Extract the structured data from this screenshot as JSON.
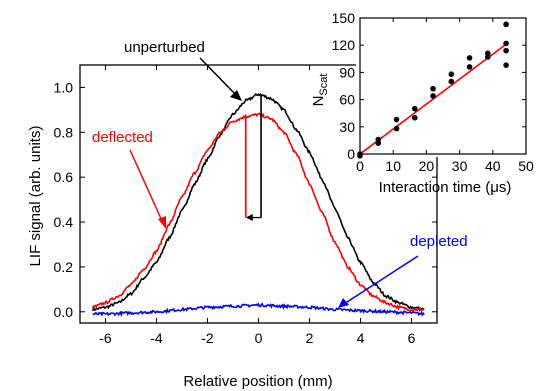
{
  "chart_data": [
    {
      "type": "line",
      "xlabel": "Relative position (mm)",
      "ylabel": "LIF signal (arb. units)",
      "xlim": [
        -7,
        7
      ],
      "ylim": [
        -0.05,
        1.1
      ],
      "xticks": [
        -6,
        -4,
        -2,
        0,
        2,
        4,
        6
      ],
      "xtick_labels": [
        "-6",
        "-4",
        "-2",
        "0",
        "2",
        "4",
        "6"
      ],
      "yticks": [
        0.0,
        0.2,
        0.4,
        0.6,
        0.8,
        1.0
      ],
      "ytick_labels": [
        "0.0",
        "0.2",
        "0.4",
        "0.6",
        "0.8",
        "1.0"
      ],
      "series": [
        {
          "name": "unperturbed",
          "color": "#000000",
          "x": [
            -6.5,
            -6,
            -5.5,
            -5,
            -4.5,
            -4,
            -3.5,
            -3,
            -2.5,
            -2,
            -1.5,
            -1,
            -0.5,
            0,
            0.5,
            1,
            1.5,
            2,
            2.5,
            3,
            3.5,
            4,
            4.5,
            5,
            5.5,
            6,
            6.5
          ],
          "y": [
            0.01,
            0.02,
            0.04,
            0.08,
            0.15,
            0.22,
            0.33,
            0.45,
            0.57,
            0.68,
            0.79,
            0.88,
            0.94,
            0.97,
            0.95,
            0.9,
            0.81,
            0.71,
            0.59,
            0.46,
            0.33,
            0.22,
            0.13,
            0.07,
            0.04,
            0.02,
            0.01
          ]
        },
        {
          "name": "deflected",
          "color": "#ff0000",
          "x": [
            -6.5,
            -6,
            -5.5,
            -5,
            -4.5,
            -4,
            -3.5,
            -3,
            -2.5,
            -2,
            -1.5,
            -1,
            -0.5,
            0,
            0.5,
            1,
            1.5,
            2,
            2.5,
            3,
            3.5,
            4,
            4.5,
            5,
            5.5,
            6,
            6.5
          ],
          "y": [
            0.02,
            0.04,
            0.07,
            0.12,
            0.19,
            0.27,
            0.39,
            0.51,
            0.62,
            0.72,
            0.8,
            0.85,
            0.87,
            0.88,
            0.86,
            0.8,
            0.7,
            0.57,
            0.44,
            0.31,
            0.2,
            0.12,
            0.07,
            0.04,
            0.02,
            0.01,
            0.01
          ]
        },
        {
          "name": "depleted",
          "color": "#0000ff",
          "x": [
            -6.5,
            -6,
            -5,
            -4,
            -3,
            -2,
            -1,
            0,
            1,
            2,
            3,
            4,
            5,
            6,
            6.5
          ],
          "y": [
            -0.01,
            -0.01,
            -0.005,
            0.0,
            0.01,
            0.02,
            0.025,
            0.03,
            0.025,
            0.02,
            0.01,
            0.005,
            0.0,
            -0.005,
            -0.01
          ]
        }
      ],
      "annotations": [
        {
          "text": "unperturbed",
          "color": "#000000"
        },
        {
          "text": "deflected",
          "color": "#ff0000"
        },
        {
          "text": "depleted",
          "color": "#0000ff"
        }
      ],
      "markers": {
        "red_line_x": -0.5,
        "black_line_x": 0.1,
        "line_y_range": [
          0.42,
          0.88
        ],
        "shift_arrow": {
          "from_x": 0.1,
          "to_x": -0.5,
          "y": 0.42
        }
      }
    },
    {
      "type": "scatter",
      "xlabel": "Interaction time (μs)",
      "ylabel_main": "N",
      "ylabel_sub": "Scat",
      "xlim": [
        0,
        50
      ],
      "ylim": [
        0,
        150
      ],
      "xticks": [
        0,
        10,
        20,
        30,
        40,
        50
      ],
      "xtick_labels": [
        "0",
        "10",
        "20",
        "30",
        "40",
        "50"
      ],
      "yticks": [
        0,
        30,
        60,
        90,
        120,
        150
      ],
      "ytick_labels": [
        "0",
        "30",
        "60",
        "90",
        "120",
        "150"
      ],
      "points": [
        {
          "x": 0,
          "y": 0
        },
        {
          "x": 0,
          "y": -2
        },
        {
          "x": 5.5,
          "y": 16
        },
        {
          "x": 5.5,
          "y": 12
        },
        {
          "x": 11,
          "y": 38
        },
        {
          "x": 11,
          "y": 28
        },
        {
          "x": 16.5,
          "y": 50
        },
        {
          "x": 16.5,
          "y": 40
        },
        {
          "x": 22,
          "y": 72
        },
        {
          "x": 22,
          "y": 64
        },
        {
          "x": 27.5,
          "y": 88
        },
        {
          "x": 27.5,
          "y": 80
        },
        {
          "x": 33,
          "y": 106
        },
        {
          "x": 33,
          "y": 96
        },
        {
          "x": 38.5,
          "y": 111
        },
        {
          "x": 38.5,
          "y": 107
        },
        {
          "x": 44,
          "y": 143
        },
        {
          "x": 44,
          "y": 122
        },
        {
          "x": 44,
          "y": 114
        },
        {
          "x": 44,
          "y": 98
        }
      ],
      "fit": {
        "x": [
          0,
          44
        ],
        "y": [
          0,
          121
        ],
        "color": "#ff0000"
      },
      "point_color": "#000000"
    }
  ]
}
